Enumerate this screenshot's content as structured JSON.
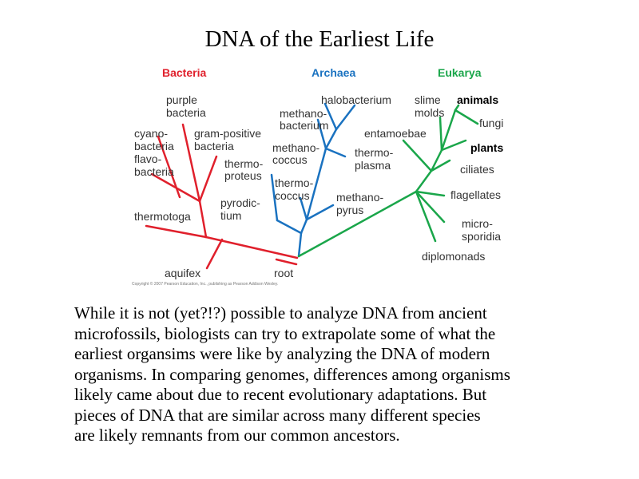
{
  "slide": {
    "title": "DNA of the Earliest Life",
    "paragraph_lines": [
      "While it is not (yet?!?) possible to analyze DNA from ancient",
      "microfossils, biologists can try to extrapolate some of what the",
      "earliest organsims were like by analyzing the DNA of modern",
      "organisms.  In comparing genomes, differences among organisms",
      "likely came about due to recent evolutionary adaptations.  But",
      "pieces of DNA that are similar across many different species",
      "are likely remnants from our common ancestors."
    ]
  },
  "tree": {
    "groups": {
      "bacteria": "Bacteria",
      "archaea": "Archaea",
      "eukarya": "Eukarya"
    },
    "colors": {
      "bacteria": "#e0202c",
      "archaea": "#1a72c0",
      "eukarya": "#1aa64a"
    },
    "bacteria": {
      "purple_1": "purple",
      "purple_2": "bacteria",
      "cyano_1": "cyano-",
      "cyano_2": "bacteria",
      "gram_1": "gram-positive",
      "gram_2": "bacteria",
      "flavo_1": "flavo-",
      "flavo_2": "bacteria",
      "thermotoga": "thermotoga",
      "aquifex": "aquifex"
    },
    "archaea": {
      "halobacterium": "halobacterium",
      "methanobacterium_1": "methano-",
      "methanobacterium_2": "bacterium",
      "methanococcus_1": "methano-",
      "methanococcus_2": "coccus",
      "thermoproteus_1": "thermo-",
      "thermoproteus_2": "proteus",
      "thermococcus_1": "thermo-",
      "thermococcus_2": "coccus",
      "pyrodictium_1": "pyrodic-",
      "pyrodictium_2": "tium",
      "thermoplasma_1": "thermo-",
      "thermoplasma_2": "plasma",
      "methanopyrus_1": "methano-",
      "methanopyrus_2": "pyrus"
    },
    "eukarya": {
      "slime_1": "slime",
      "slime_2": "molds",
      "animals": "animals",
      "fungi": "fungi",
      "entamoebae": "entamoebae",
      "plants": "plants",
      "ciliates": "ciliates",
      "flagellates": "flagellates",
      "micro_1": "micro-",
      "micro_2": "sporidia",
      "diplomonads": "diplomonads"
    },
    "root": "root",
    "copyright": "Copyright © 2007 Pearson Education, Inc., publishing as Pearson Addison Wesley."
  }
}
